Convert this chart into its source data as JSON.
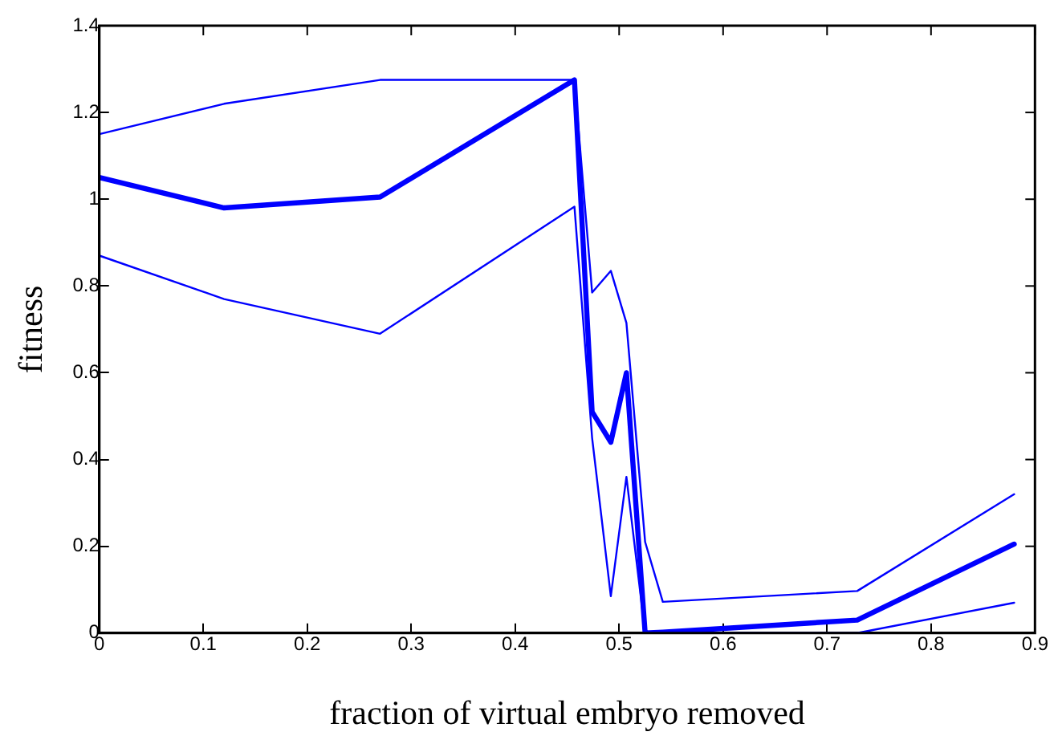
{
  "chart_data": {
    "type": "line",
    "xlabel": "fraction of virtual embryo removed",
    "ylabel": "fitness",
    "x": [
      0,
      0.12,
      0.27,
      0.457,
      0.474,
      0.492,
      0.507,
      0.525,
      0.542,
      0.729,
      0.88
    ],
    "series": [
      {
        "color": "#0000ff",
        "values": [
          1.05,
          0.98,
          1.005,
          1.275,
          0.51,
          0.44,
          0.6,
          0,
          0.002,
          0.03,
          0.205
        ]
      },
      {
        "color": "#0000ff",
        "values": [
          1.15,
          1.22,
          1.275,
          1.275,
          0.785,
          0.835,
          0.715,
          0.21,
          0.072,
          0.097,
          0.32
        ]
      },
      {
        "color": "#0000ff",
        "values": [
          0.87,
          0.77,
          0.69,
          0.983,
          0.45,
          0.085,
          0.36,
          0,
          0,
          0,
          0.07
        ]
      }
    ],
    "xlim": [
      0,
      0.9
    ],
    "xticks": [
      0,
      0.1,
      0.2,
      0.3,
      0.4,
      0.5,
      0.6,
      0.7,
      0.8,
      0.9
    ],
    "ylim": [
      0,
      1.4
    ],
    "yticks": [
      0,
      0.2,
      0.4,
      0.6,
      0.8,
      1,
      1.2,
      1.4
    ],
    "grid": false,
    "legend": false,
    "marker": "none",
    "line_style": "solid"
  }
}
